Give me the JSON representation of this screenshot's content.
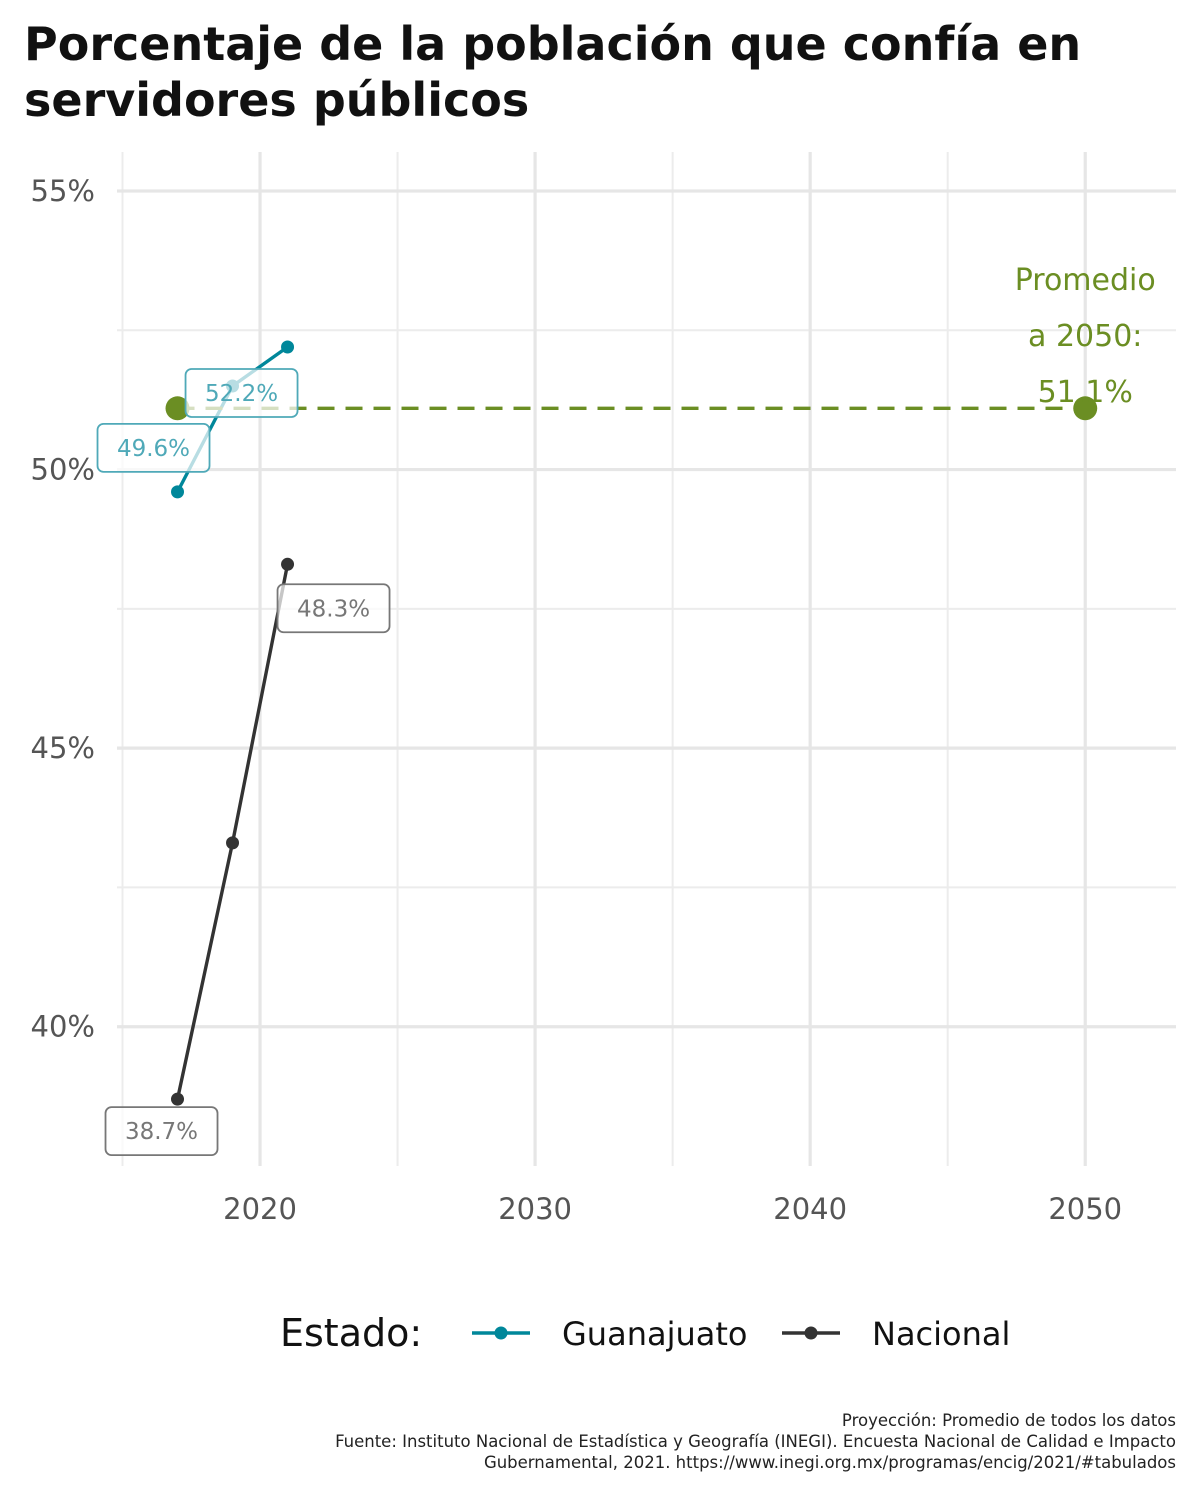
{
  "chart_data": {
    "type": "line",
    "title": "Porcentaje de la población que confía en servidores públicos",
    "xlabel": "",
    "ylabel": "",
    "xlim": [
      2014.8,
      2053.3
    ],
    "ylim": [
      37.5,
      55.7
    ],
    "x_ticks": [
      2020,
      2030,
      2040,
      2050
    ],
    "x_tick_labels": [
      "2020",
      "2030",
      "2040",
      "2050"
    ],
    "y_ticks": [
      40,
      45,
      50,
      55
    ],
    "y_tick_labels": [
      "40%",
      "45%",
      "50%",
      "55%"
    ],
    "grid": true,
    "legend": {
      "title": "Estado:",
      "placement": "bottom",
      "entries": [
        "Guanajuato",
        "Nacional"
      ]
    },
    "series": [
      {
        "name": "Guanajuato",
        "color": "#00879a",
        "label_color": "#4fa9b8",
        "x": [
          2017,
          2019,
          2021
        ],
        "y": [
          49.6,
          51.5,
          52.2
        ],
        "labels": [
          {
            "x": 2017,
            "y": 49.6,
            "text": "49.6%"
          },
          {
            "x": 2021,
            "y": 52.2,
            "text": "52.2%"
          }
        ]
      },
      {
        "name": "Nacional",
        "color": "#333333",
        "label_color": "#777777",
        "x": [
          2017,
          2019,
          2021
        ],
        "y": [
          38.7,
          43.3,
          48.3
        ],
        "labels": [
          {
            "x": 2017,
            "y": 38.7,
            "text": "38.7%"
          },
          {
            "x": 2021,
            "y": 48.3,
            "text": "48.3%"
          }
        ]
      }
    ],
    "projection": {
      "color": "#6b8e23",
      "x": [
        2017,
        2050
      ],
      "y": [
        51.1,
        51.1
      ],
      "style": "dashed",
      "annotation": [
        "Promedio",
        "a 2050:",
        "51.1%"
      ]
    }
  },
  "caption": [
    "Proyección: Promedio de todos los datos",
    "Fuente: Instituto Nacional de Estadística y Geografía (INEGI). Encuesta Nacional de Calidad e Impacto",
    "Gubernamental, 2021. https://www.inegi.org.mx/programas/encig/2021/#tabulados"
  ]
}
